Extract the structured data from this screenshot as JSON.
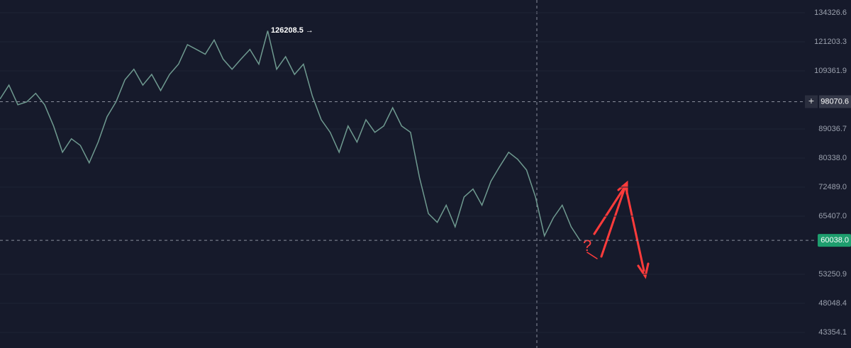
{
  "chart_data": {
    "type": "line",
    "log_scale": true,
    "grid": true,
    "ylim": [
      41027,
      140530
    ],
    "yticks": [
      134326.6,
      121203.3,
      109361.9,
      89036.7,
      {
        "value": 80338,
        "label": "80338.0"
      },
      {
        "value": 72489,
        "label": "72489.0"
      },
      {
        "value": 65407,
        "label": "65407.0"
      },
      53250.9,
      48048.4,
      43354.1
    ],
    "series": [
      {
        "color": "#6f9a90",
        "values": [
          99000,
          104000,
          97000,
          98000,
          101000,
          97000,
          90000,
          82000,
          86000,
          84000,
          79000,
          85000,
          93000,
          98000,
          106000,
          110000,
          104000,
          108000,
          102000,
          108000,
          112000,
          120000,
          118000,
          116000,
          122000,
          114000,
          110000,
          114000,
          118000,
          112000,
          126000,
          110000,
          115000,
          108000,
          112000,
          100000,
          92000,
          88000,
          82000,
          90000,
          85000,
          92000,
          88000,
          90000,
          96000,
          90000,
          88000,
          75000,
          66000,
          64000,
          68000,
          63000,
          70000,
          72000,
          68000,
          74000,
          78000,
          82000,
          80000,
          77000,
          70000,
          61000,
          65000,
          68000,
          63000,
          60000
        ]
      }
    ],
    "high_annotation": "126208.5 →",
    "crosshair": {
      "value": 98070.6,
      "label": "+"
    },
    "last_price": {
      "value": 60038,
      "label": "60038.0"
    },
    "annotation_mark": "?"
  }
}
